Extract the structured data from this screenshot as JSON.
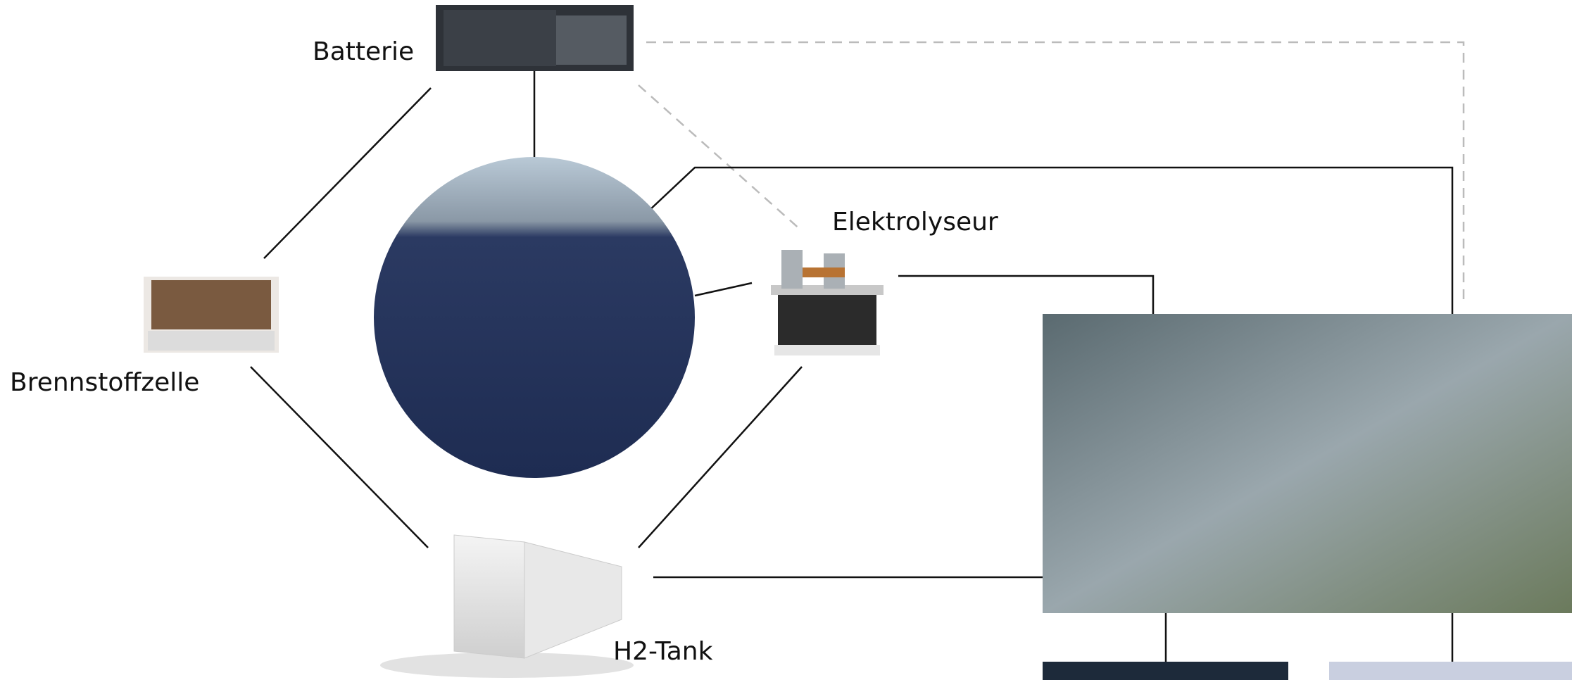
{
  "nodes": [
    {
      "label": "Batterie"
    },
    {
      "label": "Elektrolyseur"
    },
    {
      "label": "Brennstoffzelle"
    },
    {
      "label": "H2-Tank"
    }
  ]
}
